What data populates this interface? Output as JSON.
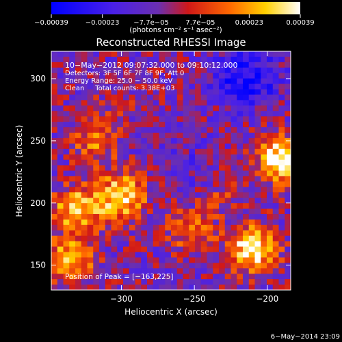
{
  "chart_data": {
    "type": "heatmap",
    "title": "Reconstructed RHESSI Image",
    "xlabel": "Heliocentric X (arcsec)",
    "ylabel": "Heliocentric Y (arcsec)",
    "xlim": [
      -348,
      -184
    ],
    "ylim": [
      130,
      322
    ],
    "x_ticks": [
      -300,
      -250,
      -200
    ],
    "y_ticks": [
      150,
      200,
      250,
      300
    ],
    "x_tick_labels": [
      "−300",
      "−250",
      "−200"
    ],
    "y_tick_labels": [
      "150",
      "200",
      "250",
      "300"
    ],
    "colorbar": {
      "range": [
        -0.00039,
        0.00039
      ],
      "tick_values": [
        -0.00039,
        -0.00023,
        -7.7e-05,
        7.7e-05,
        0.00023,
        0.00039
      ],
      "tick_labels": [
        "−0.00039",
        "−0.00023",
        "−7.7e−05",
        "7.7e−05",
        "0.00023",
        "0.00039"
      ],
      "unit_label": "(photons cm⁻² s⁻¹ asec⁻²)",
      "colormap": "blue-purple-red-yellow-white"
    },
    "annotations": [
      "10−May−2012 09:07:32.000 to 09:10:12.000",
      "Detectors: 3F 5F 6F 7F 8F 9F, Att 0",
      "Energy Range: 25.0 − 50.0 keV",
      "Clean     Total counts: 3.38E+03"
    ],
    "peak_label": "Position of Peak = [−163,225]",
    "timestamp": "6−May−2014 23:09",
    "grid_columns": 40,
    "grid_rows": 44,
    "bright_regions": [
      {
        "x": -330,
        "y": 195,
        "level": 0.78
      },
      {
        "x": -300,
        "y": 205,
        "level": 0.82
      },
      {
        "x": -318,
        "y": 250,
        "level": 0.58
      },
      {
        "x": -335,
        "y": 155,
        "level": 0.72
      },
      {
        "x": -210,
        "y": 163,
        "level": 0.88
      },
      {
        "x": -190,
        "y": 235,
        "level": 0.92
      },
      {
        "x": -252,
        "y": 178,
        "level": 0.55
      },
      {
        "x": -305,
        "y": 280,
        "level": 0.38
      },
      {
        "x": -230,
        "y": 210,
        "level": 0.45
      }
    ],
    "dim_regions": [
      {
        "x": -215,
        "y": 300,
        "level": -0.35
      },
      {
        "x": -250,
        "y": 228,
        "level": -0.1
      }
    ]
  }
}
